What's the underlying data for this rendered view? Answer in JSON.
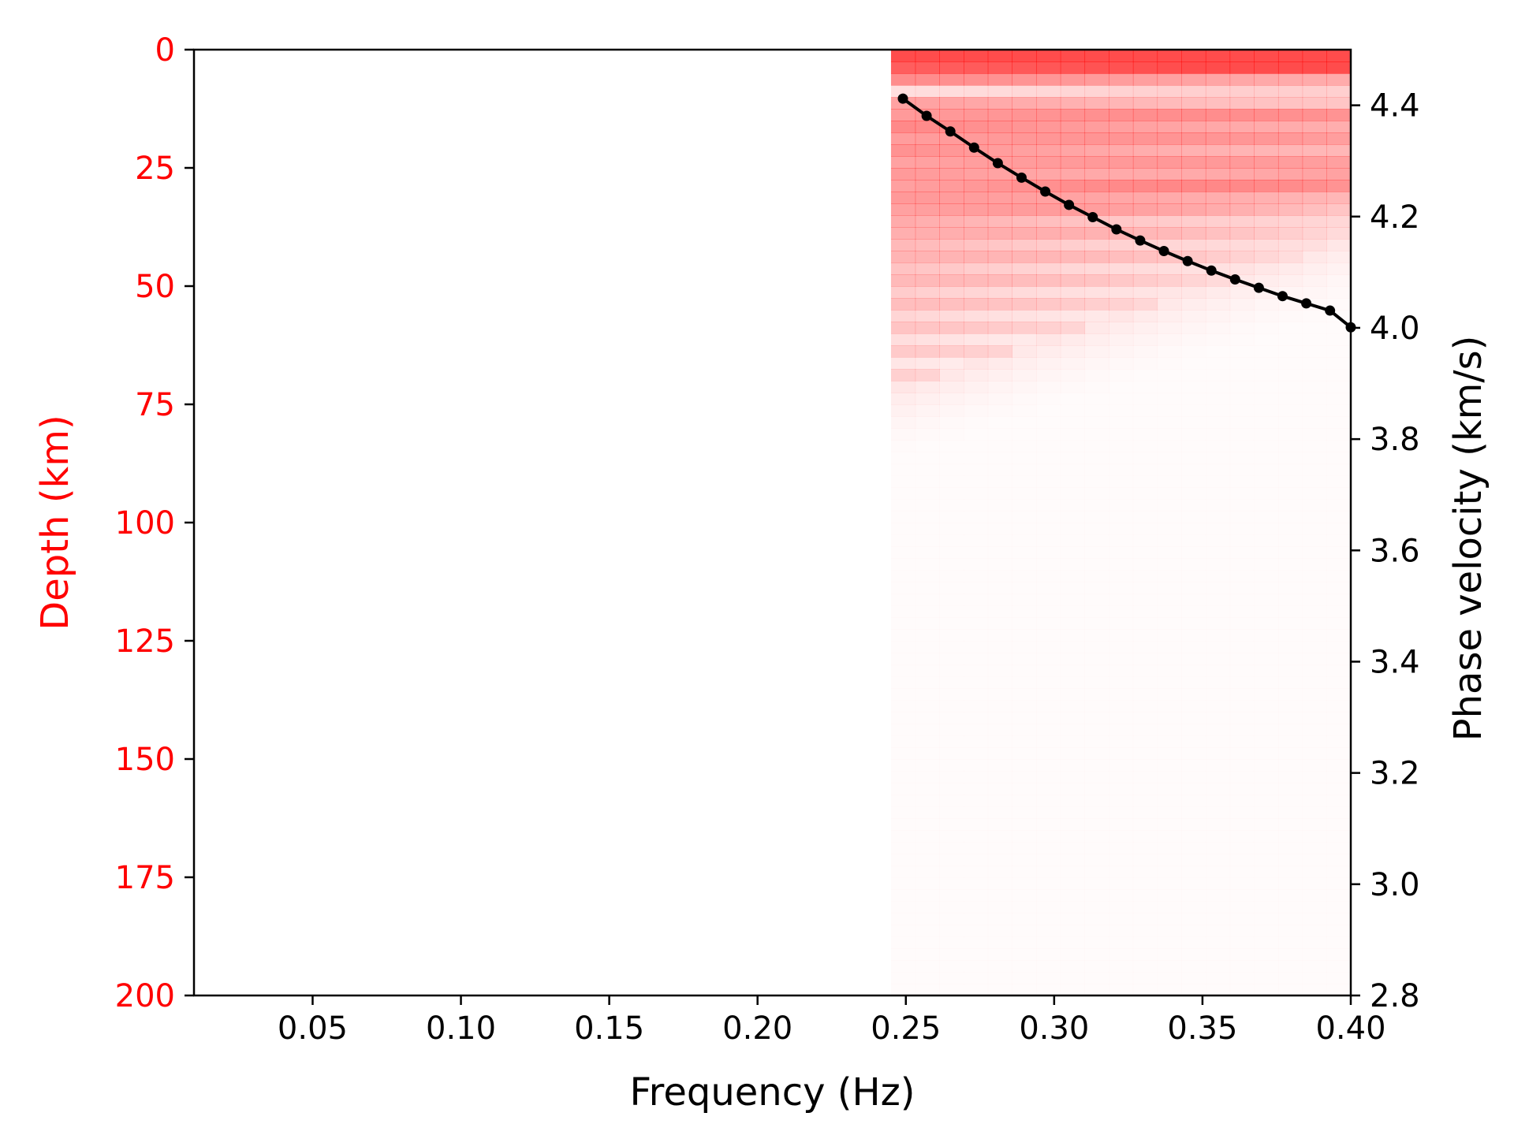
{
  "chart_data": {
    "type": "heatmap",
    "x_axis": {
      "label": "Frequency (Hz)",
      "range": [
        0.01,
        0.4
      ],
      "ticks": [
        0.05,
        0.1,
        0.15,
        0.2,
        0.25,
        0.3,
        0.35,
        0.4
      ],
      "tick_labels": [
        "0.05",
        "0.10",
        "0.15",
        "0.20",
        "0.25",
        "0.30",
        "0.35",
        "0.40"
      ]
    },
    "y_left_axis": {
      "label": "Depth (km)",
      "range": [
        200,
        0
      ],
      "inverted": true,
      "color": "#ff0000",
      "ticks": [
        0,
        25,
        50,
        75,
        100,
        125,
        150,
        175,
        200
      ],
      "tick_labels": [
        "0",
        "25",
        "50",
        "75",
        "100",
        "125",
        "150",
        "175",
        "200"
      ]
    },
    "y_right_axis": {
      "label": "Phase velocity (km/s)",
      "range": [
        2.8,
        4.5
      ],
      "color": "#000000",
      "ticks": [
        2.8,
        3.0,
        3.2,
        3.4,
        3.6,
        3.8,
        4.0,
        4.2,
        4.4
      ],
      "tick_labels": [
        "2.8",
        "3.0",
        "3.2",
        "3.4",
        "3.6",
        "3.8",
        "4.0",
        "4.2",
        "4.4"
      ]
    },
    "heatmap": {
      "description_colormap": "white-to-red sensitivity kernel",
      "color": "#ff0000",
      "frequency_start": 0.245,
      "frequency_end": 0.4,
      "depth_start": 0,
      "depth_end": 200,
      "n_freq": 19,
      "n_depth": 80
    },
    "dispersion_curve": {
      "color": "#000000",
      "marker": "circle",
      "frequency": [
        0.249,
        0.257,
        0.265,
        0.273,
        0.281,
        0.289,
        0.297,
        0.305,
        0.313,
        0.321,
        0.329,
        0.337,
        0.345,
        0.353,
        0.361,
        0.369,
        0.377,
        0.385,
        0.393,
        0.4
      ],
      "phase_velocity": [
        4.412,
        4.381,
        4.353,
        4.324,
        4.296,
        4.27,
        4.245,
        4.221,
        4.199,
        4.177,
        4.157,
        4.138,
        4.12,
        4.103,
        4.087,
        4.072,
        4.057,
        4.044,
        4.031,
        4.001
      ]
    },
    "grid": false,
    "legend": "none"
  }
}
